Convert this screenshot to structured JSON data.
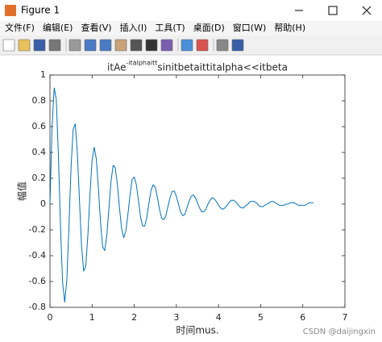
{
  "window": {
    "title": "Figure 1",
    "menu": [
      "文件(F)",
      "编辑(E)",
      "查看(V)",
      "插入(I)",
      "工具(T)",
      "桌面(D)",
      "窗口(W)",
      "帮助(H)"
    ],
    "watermark": "CSDN @daijingxin"
  },
  "chart_data": {
    "type": "line",
    "title": "itAe",
    "title_superscript": "-italphaitt",
    "title_rest": "sinitbetaittitalpha<<itbeta",
    "xlabel": "时间mus.",
    "ylabel": "幅值",
    "color": "#0072bd",
    "xlim": [
      0,
      7
    ],
    "xticks": [
      0,
      1,
      2,
      3,
      4,
      5,
      6,
      7
    ],
    "ylim": [
      -0.8,
      1
    ],
    "yticks": [
      -0.8,
      -0.6,
      -0.4,
      -0.2,
      0,
      0.2,
      0.4,
      0.6,
      0.8,
      1
    ],
    "x": [
      0,
      0.05,
      0.1,
      0.15,
      0.2,
      0.25,
      0.3,
      0.35,
      0.4,
      0.45,
      0.5,
      0.55,
      0.6,
      0.65,
      0.7,
      0.75,
      0.8,
      0.85,
      0.9,
      0.95,
      1,
      1.05,
      1.1,
      1.15,
      1.2,
      1.25,
      1.3,
      1.35,
      1.4,
      1.45,
      1.5,
      1.55,
      1.6,
      1.65,
      1.7,
      1.75,
      1.8,
      1.85,
      1.9,
      1.95,
      2,
      2.05,
      2.1,
      2.15,
      2.2,
      2.25,
      2.3,
      2.35,
      2.4,
      2.45,
      2.5,
      2.55,
      2.6,
      2.65,
      2.7,
      2.75,
      2.8,
      2.85,
      2.9,
      2.95,
      3,
      3.05,
      3.1,
      3.15,
      3.2,
      3.25,
      3.3,
      3.35,
      3.4,
      3.45,
      3.5,
      3.55,
      3.6,
      3.65,
      3.7,
      3.75,
      3.8,
      3.85,
      3.9,
      3.95,
      4,
      4.05,
      4.1,
      4.15,
      4.2,
      4.25,
      4.3,
      4.35,
      4.4,
      4.45,
      4.5,
      4.55,
      4.6,
      4.65,
      4.7,
      4.75,
      4.8,
      4.85,
      4.9,
      4.95,
      5,
      5.05,
      5.1,
      5.15,
      5.2,
      5.25,
      5.3,
      5.35,
      5.4,
      5.45,
      5.5,
      5.55,
      5.6,
      5.65,
      5.7,
      5.75,
      5.8,
      5.85,
      5.9,
      5.95,
      6,
      6.05,
      6.1,
      6.15,
      6.2,
      6.25
    ],
    "values": [
      0,
      0.6,
      0.9,
      0.81,
      0.38,
      -0.17,
      -0.61,
      -0.76,
      -0.59,
      -0.18,
      0.28,
      0.58,
      0.62,
      0.4,
      0.03,
      -0.33,
      -0.52,
      -0.48,
      -0.24,
      0.08,
      0.34,
      0.44,
      0.35,
      0.12,
      -0.14,
      -0.33,
      -0.36,
      -0.24,
      -0.03,
      0.18,
      0.3,
      0.28,
      0.15,
      -0.03,
      -0.19,
      -0.26,
      -0.21,
      -0.08,
      0.07,
      0.19,
      0.21,
      0.15,
      0.03,
      -0.1,
      -0.17,
      -0.17,
      -0.1,
      0.01,
      0.11,
      0.15,
      0.13,
      0.05,
      -0.04,
      -0.11,
      -0.12,
      -0.09,
      -0.02,
      0.05,
      0.1,
      0.1,
      0.06,
      0,
      -0.06,
      -0.09,
      -0.08,
      -0.03,
      0.02,
      0.06,
      0.07,
      0.05,
      0.01,
      -0.03,
      -0.06,
      -0.06,
      -0.04,
      0,
      0.03,
      0.05,
      0.04,
      0.02,
      -0.01,
      -0.03,
      -0.04,
      -0.03,
      -0.01,
      0.01,
      0.03,
      0.03,
      0.02,
      0,
      -0.02,
      -0.03,
      -0.03,
      -0.01,
      0,
      0.02,
      0.02,
      0.02,
      0.01,
      -0.01,
      -0.02,
      -0.02,
      -0.01,
      0,
      0.01,
      0.02,
      0.02,
      0.01,
      0,
      -0.01,
      -0.01,
      -0.01,
      0,
      0,
      0.01,
      0.01,
      0.01,
      0,
      -0.01,
      -0.01,
      -0.01,
      -0.01,
      0,
      0.01,
      0.01,
      0.01
    ]
  }
}
